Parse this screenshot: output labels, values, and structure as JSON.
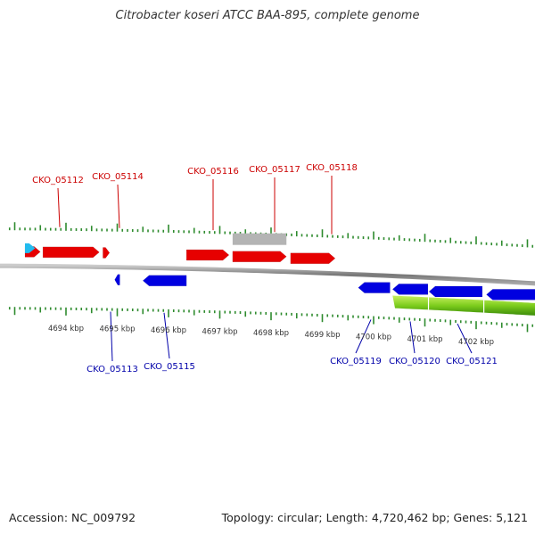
{
  "title": "Citrobacter koseri ATCC BAA-895, complete genome",
  "footer": {
    "accession": "Accession: NC_009792",
    "summary": "Topology: circular; Length: 4,720,462 bp; Genes: 5,121"
  },
  "colors": {
    "forward": "#e60000",
    "reverse": "#0000e0",
    "other": "#b4b4b4",
    "cyan": "#22bbee",
    "backbone": "#888888",
    "ticks": "#2e8b2e",
    "gc": "#7ccc1c",
    "fwd_label": "#cc0000",
    "rev_label": "#0000aa"
  },
  "scale": {
    "unit": "kbp",
    "labels": [
      {
        "kbp": 4694,
        "text": "4694 kbp"
      },
      {
        "kbp": 4695,
        "text": "4695 kbp"
      },
      {
        "kbp": 4696,
        "text": "4696 kbp"
      },
      {
        "kbp": 4697,
        "text": "4697 kbp"
      },
      {
        "kbp": 4698,
        "text": "4698 kbp"
      },
      {
        "kbp": 4699,
        "text": "4699 kbp"
      },
      {
        "kbp": 4700,
        "text": "4700 kbp"
      },
      {
        "kbp": 4701,
        "text": "4701 kbp"
      },
      {
        "kbp": 4702,
        "text": "4702 kbp"
      }
    ]
  },
  "genes": {
    "forward": [
      {
        "label": "CKO_05112",
        "start_kbp": 4693.55,
        "end_kbp": 4694.65
      },
      {
        "label": "CKO_05114",
        "start_kbp": 4694.72,
        "end_kbp": 4694.85
      },
      {
        "label": "CKO_05116",
        "start_kbp": 4696.35,
        "end_kbp": 4697.18
      },
      {
        "label": "CKO_05117",
        "start_kbp": 4697.25,
        "end_kbp": 4698.3
      },
      {
        "label": "CKO_05118",
        "start_kbp": 4698.38,
        "end_kbp": 4699.25
      }
    ],
    "reverse": [
      {
        "label": "CKO_05113",
        "start_kbp": 4694.95,
        "end_kbp": 4695.05
      },
      {
        "label": "CKO_05115",
        "start_kbp": 4695.5,
        "end_kbp": 4696.35
      },
      {
        "label": "CKO_05119",
        "start_kbp": 4699.7,
        "end_kbp": 4700.32
      },
      {
        "label": "CKO_05120",
        "start_kbp": 4700.37,
        "end_kbp": 4701.06
      },
      {
        "label": "CKO_05121",
        "start_kbp": 4701.08,
        "end_kbp": 4702.12
      }
    ],
    "unlabeled": [
      {
        "name": "gene-forward-offscreen",
        "strand": "+",
        "color": "forward",
        "start_kbp": 4693.2,
        "end_kbp": 4693.5
      },
      {
        "name": "gene-cyan-offscreen",
        "strand": "+",
        "color": "cyan",
        "start_kbp": 4693.2,
        "end_kbp": 4693.4
      },
      {
        "name": "gene-reverse-offscreen",
        "strand": "-",
        "color": "reverse",
        "start_kbp": 4702.2,
        "end_kbp": 4703.2
      },
      {
        "name": "feature-grey",
        "strand": "+",
        "color": "other",
        "start_kbp": 4697.25,
        "end_kbp": 4698.3
      }
    ]
  },
  "gc_track": {
    "start_kbp": 4700.37,
    "end_kbp": 4703.2
  }
}
